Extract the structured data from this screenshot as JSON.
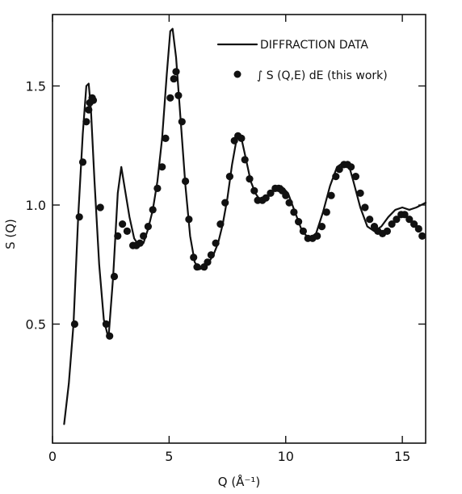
{
  "chart_data": {
    "type": "line",
    "title": "",
    "xlabel": "Q (Å⁻¹)",
    "ylabel": "S (Q)",
    "xlim": [
      0,
      16
    ],
    "ylim": [
      0,
      1.8
    ],
    "x_ticks": [
      0,
      5,
      10,
      15
    ],
    "x_tick_labels": [
      "0",
      "5",
      "10",
      "15"
    ],
    "y_ticks": [
      0.5,
      1.0,
      1.5
    ],
    "y_tick_labels": [
      "0.5",
      "1.0",
      "1.5"
    ],
    "legend_position": "top-right",
    "grid": false,
    "series": [
      {
        "name": "DIFFRACTION DATA",
        "style": "line",
        "x": [
          0.5,
          0.7,
          0.9,
          1.1,
          1.3,
          1.45,
          1.55,
          1.65,
          1.8,
          2.0,
          2.2,
          2.4,
          2.6,
          2.8,
          2.95,
          3.1,
          3.3,
          3.5,
          3.7,
          3.9,
          4.1,
          4.3,
          4.5,
          4.7,
          4.9,
          5.05,
          5.15,
          5.3,
          5.5,
          5.7,
          5.9,
          6.1,
          6.3,
          6.5,
          6.7,
          6.9,
          7.1,
          7.3,
          7.5,
          7.7,
          7.9,
          8.0,
          8.1,
          8.3,
          8.5,
          8.7,
          8.9,
          9.2,
          9.5,
          9.8,
          10.1,
          10.4,
          10.7,
          11.0,
          11.3,
          11.6,
          11.9,
          12.2,
          12.5,
          12.7,
          12.9,
          13.2,
          13.5,
          13.8,
          14.1,
          14.4,
          14.7,
          15.0,
          15.3,
          15.6,
          16.0
        ],
        "y": [
          0.08,
          0.25,
          0.5,
          0.95,
          1.3,
          1.5,
          1.51,
          1.4,
          1.1,
          0.75,
          0.52,
          0.44,
          0.7,
          1.05,
          1.16,
          1.07,
          0.95,
          0.86,
          0.83,
          0.84,
          0.9,
          0.98,
          1.1,
          1.28,
          1.55,
          1.73,
          1.74,
          1.62,
          1.35,
          1.08,
          0.87,
          0.76,
          0.73,
          0.74,
          0.76,
          0.79,
          0.84,
          0.92,
          1.03,
          1.17,
          1.28,
          1.3,
          1.28,
          1.19,
          1.1,
          1.05,
          1.02,
          1.03,
          1.06,
          1.08,
          1.05,
          0.97,
          0.89,
          0.86,
          0.88,
          0.97,
          1.08,
          1.16,
          1.18,
          1.17,
          1.1,
          0.99,
          0.91,
          0.89,
          0.91,
          0.95,
          0.98,
          0.99,
          0.98,
          0.99,
          1.01
        ]
      },
      {
        "name": "∫ S (Q,E) dE (this work)",
        "style": "scatter",
        "x": [
          0.95,
          1.15,
          1.3,
          1.45,
          1.55,
          1.6,
          1.7,
          1.75,
          2.05,
          2.3,
          2.45,
          2.65,
          2.8,
          3.0,
          3.2,
          3.45,
          3.6,
          3.75,
          3.9,
          4.1,
          4.3,
          4.5,
          4.7,
          4.85,
          5.05,
          5.2,
          5.3,
          5.4,
          5.55,
          5.7,
          5.85,
          6.05,
          6.2,
          6.5,
          6.65,
          6.8,
          7.0,
          7.2,
          7.4,
          7.6,
          7.8,
          7.95,
          8.1,
          8.25,
          8.45,
          8.65,
          8.8,
          9.0,
          9.15,
          9.35,
          9.55,
          9.7,
          9.85,
          10.0,
          10.15,
          10.35,
          10.55,
          10.75,
          10.95,
          11.15,
          11.35,
          11.55,
          11.75,
          11.95,
          12.15,
          12.3,
          12.5,
          12.65,
          12.8,
          13.0,
          13.2,
          13.4,
          13.6,
          13.8,
          13.95,
          14.15,
          14.35,
          14.55,
          14.75,
          14.95,
          15.1,
          15.3,
          15.5,
          15.7,
          15.85
        ],
        "y": [
          0.5,
          0.95,
          1.18,
          1.35,
          1.4,
          1.43,
          1.45,
          1.44,
          0.99,
          0.5,
          0.45,
          0.7,
          0.87,
          0.92,
          0.89,
          0.83,
          0.83,
          0.84,
          0.87,
          0.91,
          0.98,
          1.07,
          1.16,
          1.28,
          1.45,
          1.53,
          1.56,
          1.46,
          1.35,
          1.1,
          0.94,
          0.78,
          0.74,
          0.74,
          0.76,
          0.79,
          0.84,
          0.92,
          1.01,
          1.12,
          1.27,
          1.29,
          1.28,
          1.19,
          1.11,
          1.06,
          1.02,
          1.02,
          1.03,
          1.05,
          1.07,
          1.07,
          1.06,
          1.04,
          1.01,
          0.97,
          0.93,
          0.89,
          0.86,
          0.86,
          0.87,
          0.91,
          0.97,
          1.04,
          1.12,
          1.15,
          1.17,
          1.17,
          1.16,
          1.12,
          1.05,
          0.99,
          0.94,
          0.91,
          0.89,
          0.88,
          0.89,
          0.92,
          0.94,
          0.96,
          0.96,
          0.94,
          0.92,
          0.9,
          0.87
        ]
      }
    ]
  }
}
